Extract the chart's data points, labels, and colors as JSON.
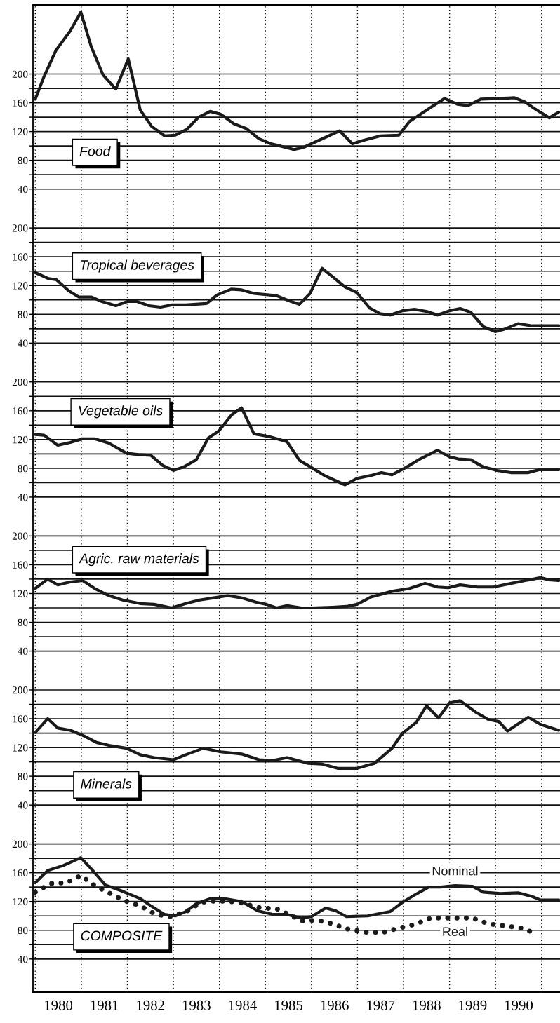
{
  "chart_data": [
    {
      "type": "line",
      "title": "Food",
      "xlim": [
        1979.95,
        1991.4
      ],
      "ylim": [
        13,
        296
      ],
      "tick_labels": "y",
      "grid": "y",
      "legend": false,
      "yticks": [
        40,
        {
          "value": 60,
          "label": null
        },
        80,
        {
          "value": 100,
          "label": null
        },
        120,
        {
          "value": 140,
          "label": null
        },
        160,
        {
          "value": 180,
          "label": null
        },
        200
      ],
      "ref_lines": [
        {
          "axis": "x",
          "value": 1980,
          "line_style": "dotted",
          "color": "#000000"
        },
        {
          "axis": "x",
          "value": 1981,
          "line_style": "dotted",
          "color": "#000000"
        },
        {
          "axis": "x",
          "value": 1982,
          "line_style": "dotted",
          "color": "#000000"
        },
        {
          "axis": "x",
          "value": 1983,
          "line_style": "dotted",
          "color": "#000000"
        },
        {
          "axis": "x",
          "value": 1984,
          "line_style": "dotted",
          "color": "#000000"
        },
        {
          "axis": "x",
          "value": 1985,
          "line_style": "dotted",
          "color": "#000000"
        },
        {
          "axis": "x",
          "value": 1986,
          "line_style": "dotted",
          "color": "#000000"
        },
        {
          "axis": "x",
          "value": 1987,
          "line_style": "dotted",
          "color": "#000000"
        },
        {
          "axis": "x",
          "value": 1988,
          "line_style": "dotted",
          "color": "#000000"
        },
        {
          "axis": "x",
          "value": 1989,
          "line_style": "dotted",
          "color": "#000000"
        },
        {
          "axis": "x",
          "value": 1990,
          "line_style": "dotted",
          "color": "#000000"
        },
        {
          "axis": "x",
          "value": 1991,
          "line_style": "dotted",
          "color": "#000000"
        }
      ],
      "series": [
        {
          "color": "#1a1a1a",
          "line_style": "solid",
          "x": [
            1980.0,
            1980.18,
            1980.45,
            1980.76,
            1980.99,
            1981.22,
            1981.47,
            1981.75,
            1982.02,
            1982.28,
            1982.53,
            1982.81,
            1983.04,
            1983.29,
            1983.55,
            1983.8,
            1984.03,
            1984.31,
            1984.59,
            1984.86,
            1985.12,
            1985.32,
            1985.62,
            1985.83,
            1986.1,
            1986.61,
            1986.89,
            1987.14,
            1987.5,
            1987.9,
            1988.13,
            1988.51,
            1988.89,
            1989.17,
            1989.4,
            1989.68,
            1990.13,
            1990.41,
            1990.64,
            1990.89,
            1991.17,
            1991.37
          ],
          "values": [
            165,
            195,
            233,
            260,
            286,
            237,
            199,
            179,
            221,
            150,
            127,
            114,
            115,
            123,
            140,
            148,
            144,
            131,
            124,
            110,
            103,
            100,
            95,
            98,
            106,
            121,
            103,
            108,
            114,
            115,
            134,
            150,
            166,
            158,
            156,
            165,
            166,
            167,
            161,
            150,
            139,
            147
          ]
        }
      ]
    },
    {
      "type": "line",
      "title": "Tropical beverages",
      "xlim": [
        1979.95,
        1991.4
      ],
      "ylim": [
        13,
        227
      ],
      "tick_labels": "y",
      "grid": "y",
      "legend": false,
      "yticks": [
        40,
        {
          "value": 60,
          "label": null
        },
        80,
        {
          "value": 100,
          "label": null
        },
        120,
        {
          "value": 140,
          "label": null
        },
        160,
        {
          "value": 180,
          "label": null
        },
        200
      ],
      "ref_lines": [
        {
          "axis": "x",
          "value": 1980,
          "line_style": "dotted",
          "color": "#000000"
        },
        {
          "axis": "x",
          "value": 1981,
          "line_style": "dotted",
          "color": "#000000"
        },
        {
          "axis": "x",
          "value": 1982,
          "line_style": "dotted",
          "color": "#000000"
        },
        {
          "axis": "x",
          "value": 1983,
          "line_style": "dotted",
          "color": "#000000"
        },
        {
          "axis": "x",
          "value": 1984,
          "line_style": "dotted",
          "color": "#000000"
        },
        {
          "axis": "x",
          "value": 1985,
          "line_style": "dotted",
          "color": "#000000"
        },
        {
          "axis": "x",
          "value": 1986,
          "line_style": "dotted",
          "color": "#000000"
        },
        {
          "axis": "x",
          "value": 1987,
          "line_style": "dotted",
          "color": "#000000"
        },
        {
          "axis": "x",
          "value": 1988,
          "line_style": "dotted",
          "color": "#000000"
        },
        {
          "axis": "x",
          "value": 1989,
          "line_style": "dotted",
          "color": "#000000"
        },
        {
          "axis": "x",
          "value": 1990,
          "line_style": "dotted",
          "color": "#000000"
        },
        {
          "axis": "x",
          "value": 1991,
          "line_style": "dotted",
          "color": "#000000"
        }
      ],
      "series": [
        {
          "color": "#1a1a1a",
          "line_style": "solid",
          "x": [
            1980.0,
            1980.27,
            1980.46,
            1980.72,
            1980.95,
            1981.22,
            1981.44,
            1981.75,
            1982.01,
            1982.2,
            1982.47,
            1982.72,
            1982.96,
            1983.27,
            1983.72,
            1983.95,
            1984.26,
            1984.48,
            1984.75,
            1985.24,
            1985.55,
            1985.74,
            1985.97,
            1986.23,
            1986.5,
            1986.73,
            1986.99,
            1987.26,
            1987.49,
            1987.71,
            1987.98,
            1988.24,
            1988.51,
            1988.74,
            1989.0,
            1989.23,
            1989.46,
            1989.73,
            1989.99,
            1990.18,
            1990.49,
            1990.79,
            1991.13,
            1991.37
          ],
          "values": [
            138,
            130,
            128,
            113,
            104,
            104,
            98,
            92,
            98,
            98,
            92,
            90,
            93,
            93,
            95,
            107,
            115,
            114,
            109,
            106,
            98,
            94,
            109,
            144,
            130,
            118,
            110,
            89,
            81,
            79,
            85,
            87,
            84,
            79,
            85,
            88,
            83,
            63,
            56,
            59,
            67,
            64,
            64,
            64
          ]
        }
      ]
    },
    {
      "type": "line",
      "title": "Vegetable oils",
      "xlim": [
        1979.95,
        1991.4
      ],
      "ylim": [
        13,
        227
      ],
      "tick_labels": "y",
      "grid": "y",
      "legend": false,
      "yticks": [
        40,
        {
          "value": 60,
          "label": null
        },
        80,
        {
          "value": 100,
          "label": null
        },
        120,
        {
          "value": 140,
          "label": null
        },
        160,
        {
          "value": 180,
          "label": null
        },
        200
      ],
      "ref_lines": [
        {
          "axis": "x",
          "value": 1980,
          "line_style": "dotted",
          "color": "#000000"
        },
        {
          "axis": "x",
          "value": 1981,
          "line_style": "dotted",
          "color": "#000000"
        },
        {
          "axis": "x",
          "value": 1982,
          "line_style": "dotted",
          "color": "#000000"
        },
        {
          "axis": "x",
          "value": 1983,
          "line_style": "dotted",
          "color": "#000000"
        },
        {
          "axis": "x",
          "value": 1984,
          "line_style": "dotted",
          "color": "#000000"
        },
        {
          "axis": "x",
          "value": 1985,
          "line_style": "dotted",
          "color": "#000000"
        },
        {
          "axis": "x",
          "value": 1986,
          "line_style": "dotted",
          "color": "#000000"
        },
        {
          "axis": "x",
          "value": 1987,
          "line_style": "dotted",
          "color": "#000000"
        },
        {
          "axis": "x",
          "value": 1988,
          "line_style": "dotted",
          "color": "#000000"
        },
        {
          "axis": "x",
          "value": 1989,
          "line_style": "dotted",
          "color": "#000000"
        },
        {
          "axis": "x",
          "value": 1990,
          "line_style": "dotted",
          "color": "#000000"
        },
        {
          "axis": "x",
          "value": 1991,
          "line_style": "dotted",
          "color": "#000000"
        }
      ],
      "series": [
        {
          "color": "#1a1a1a",
          "line_style": "solid",
          "x": [
            1980.0,
            1980.19,
            1980.49,
            1980.76,
            1981.03,
            1981.29,
            1981.6,
            1981.98,
            1982.24,
            1982.51,
            1982.77,
            1983.0,
            1983.23,
            1983.5,
            1983.76,
            1983.99,
            1984.26,
            1984.48,
            1984.75,
            1985.09,
            1985.47,
            1985.74,
            1986.0,
            1986.31,
            1986.73,
            1986.99,
            1987.29,
            1987.52,
            1987.75,
            1988.05,
            1988.36,
            1988.74,
            1989.0,
            1989.19,
            1989.46,
            1989.73,
            1990.03,
            1990.33,
            1990.71,
            1990.94,
            1991.16,
            1991.37
          ],
          "values": [
            127,
            126,
            112,
            116,
            121,
            121,
            115,
            101,
            99,
            98,
            84,
            77,
            82,
            92,
            122,
            132,
            154,
            164,
            128,
            124,
            117,
            91,
            81,
            69,
            57,
            66,
            70,
            74,
            71,
            81,
            93,
            105,
            96,
            93,
            92,
            82,
            77,
            74,
            74,
            78,
            78,
            78
          ]
        }
      ]
    },
    {
      "type": "line",
      "title": "Agric. raw materials",
      "xlim": [
        1979.95,
        1991.4
      ],
      "ylim": [
        13,
        227
      ],
      "tick_labels": "y",
      "grid": "y",
      "legend": false,
      "yticks": [
        40,
        {
          "value": 60,
          "label": null
        },
        80,
        {
          "value": 100,
          "label": null
        },
        120,
        {
          "value": 140,
          "label": null
        },
        160,
        {
          "value": 180,
          "label": null
        },
        200
      ],
      "ref_lines": [
        {
          "axis": "x",
          "value": 1980,
          "line_style": "dotted",
          "color": "#000000"
        },
        {
          "axis": "x",
          "value": 1981,
          "line_style": "dotted",
          "color": "#000000"
        },
        {
          "axis": "x",
          "value": 1982,
          "line_style": "dotted",
          "color": "#000000"
        },
        {
          "axis": "x",
          "value": 1983,
          "line_style": "dotted",
          "color": "#000000"
        },
        {
          "axis": "x",
          "value": 1984,
          "line_style": "dotted",
          "color": "#000000"
        },
        {
          "axis": "x",
          "value": 1985,
          "line_style": "dotted",
          "color": "#000000"
        },
        {
          "axis": "x",
          "value": 1986,
          "line_style": "dotted",
          "color": "#000000"
        },
        {
          "axis": "x",
          "value": 1987,
          "line_style": "dotted",
          "color": "#000000"
        },
        {
          "axis": "x",
          "value": 1988,
          "line_style": "dotted",
          "color": "#000000"
        },
        {
          "axis": "x",
          "value": 1989,
          "line_style": "dotted",
          "color": "#000000"
        },
        {
          "axis": "x",
          "value": 1990,
          "line_style": "dotted",
          "color": "#000000"
        },
        {
          "axis": "x",
          "value": 1991,
          "line_style": "dotted",
          "color": "#000000"
        }
      ],
      "series": [
        {
          "color": "#1a1a1a",
          "line_style": "solid",
          "x": [
            1980.0,
            1980.27,
            1980.49,
            1980.76,
            1981.03,
            1981.29,
            1981.6,
            1981.9,
            1982.28,
            1982.58,
            1982.96,
            1983.27,
            1983.57,
            1983.88,
            1984.18,
            1984.48,
            1984.79,
            1985.02,
            1985.24,
            1985.47,
            1985.78,
            1986.0,
            1986.46,
            1986.76,
            1986.99,
            1987.29,
            1987.75,
            1988.13,
            1988.47,
            1988.74,
            1988.97,
            1989.23,
            1989.61,
            1989.95,
            1990.33,
            1990.64,
            1990.98,
            1991.16,
            1991.37
          ],
          "values": [
            127,
            140,
            132,
            136,
            138,
            127,
            117,
            111,
            106,
            105,
            100,
            106,
            111,
            114,
            117,
            114,
            108,
            105,
            100,
            103,
            100,
            100,
            101,
            102,
            105,
            115,
            123,
            127,
            134,
            129,
            128,
            132,
            129,
            129,
            134,
            138,
            142,
            139,
            138
          ]
        }
      ]
    },
    {
      "type": "line",
      "title": "Minerals",
      "xlim": [
        1979.95,
        1991.4
      ],
      "ylim": [
        13,
        227
      ],
      "tick_labels": "y",
      "grid": "y",
      "legend": false,
      "yticks": [
        40,
        {
          "value": 60,
          "label": null
        },
        80,
        {
          "value": 100,
          "label": null
        },
        120,
        {
          "value": 140,
          "label": null
        },
        160,
        {
          "value": 180,
          "label": null
        },
        200
      ],
      "ref_lines": [
        {
          "axis": "x",
          "value": 1980,
          "line_style": "dotted",
          "color": "#000000"
        },
        {
          "axis": "x",
          "value": 1981,
          "line_style": "dotted",
          "color": "#000000"
        },
        {
          "axis": "x",
          "value": 1982,
          "line_style": "dotted",
          "color": "#000000"
        },
        {
          "axis": "x",
          "value": 1983,
          "line_style": "dotted",
          "color": "#000000"
        },
        {
          "axis": "x",
          "value": 1984,
          "line_style": "dotted",
          "color": "#000000"
        },
        {
          "axis": "x",
          "value": 1985,
          "line_style": "dotted",
          "color": "#000000"
        },
        {
          "axis": "x",
          "value": 1986,
          "line_style": "dotted",
          "color": "#000000"
        },
        {
          "axis": "x",
          "value": 1987,
          "line_style": "dotted",
          "color": "#000000"
        },
        {
          "axis": "x",
          "value": 1988,
          "line_style": "dotted",
          "color": "#000000"
        },
        {
          "axis": "x",
          "value": 1989,
          "line_style": "dotted",
          "color": "#000000"
        },
        {
          "axis": "x",
          "value": 1990,
          "line_style": "dotted",
          "color": "#000000"
        },
        {
          "axis": "x",
          "value": 1991,
          "line_style": "dotted",
          "color": "#000000"
        }
      ],
      "series": [
        {
          "color": "#1a1a1a",
          "line_style": "solid",
          "x": [
            1980.0,
            1980.27,
            1980.49,
            1980.76,
            1981.03,
            1981.33,
            1981.6,
            1981.98,
            1982.28,
            1982.58,
            1983.0,
            1983.27,
            1983.65,
            1984.03,
            1984.48,
            1984.86,
            1985.17,
            1985.47,
            1985.93,
            1986.23,
            1986.57,
            1986.99,
            1987.37,
            1987.75,
            1987.98,
            1988.28,
            1988.5,
            1988.76,
            1989.0,
            1989.23,
            1989.57,
            1989.84,
            1990.07,
            1990.26,
            1990.71,
            1990.98,
            1991.37
          ],
          "values": [
            141,
            160,
            147,
            144,
            137,
            127,
            123,
            119,
            110,
            106,
            103,
            110,
            119,
            114,
            111,
            103,
            102,
            106,
            98,
            97,
            91,
            91,
            98,
            119,
            140,
            155,
            178,
            161,
            182,
            185,
            169,
            159,
            156,
            143,
            162,
            152,
            144
          ]
        }
      ]
    },
    {
      "type": "line",
      "title": "COMPOSITE",
      "xlim": [
        1979.95,
        1991.4
      ],
      "ylim": [
        -6,
        227
      ],
      "grid": "y",
      "legend": false,
      "xticks": [
        {
          "value": 1980.5,
          "label": "1980"
        },
        {
          "value": 1981.5,
          "label": "1981"
        },
        {
          "value": 1982.5,
          "label": "1982"
        },
        {
          "value": 1983.5,
          "label": "1983"
        },
        {
          "value": 1984.5,
          "label": "1984"
        },
        {
          "value": 1985.5,
          "label": "1985"
        },
        {
          "value": 1986.5,
          "label": "1986"
        },
        {
          "value": 1987.5,
          "label": "1987"
        },
        {
          "value": 1988.5,
          "label": "1988"
        },
        {
          "value": 1989.5,
          "label": "1989"
        },
        {
          "value": 1990.5,
          "label": "1990"
        }
      ],
      "yticks": [
        40,
        {
          "value": 60,
          "label": null
        },
        80,
        {
          "value": 100,
          "label": null
        },
        120,
        {
          "value": 140,
          "label": null
        },
        160,
        {
          "value": 180,
          "label": null
        },
        200
      ],
      "ref_lines": [
        {
          "axis": "x",
          "value": 1980,
          "line_style": "dotted",
          "color": "#000000"
        },
        {
          "axis": "x",
          "value": 1981,
          "line_style": "dotted",
          "color": "#000000"
        },
        {
          "axis": "x",
          "value": 1982,
          "line_style": "dotted",
          "color": "#000000"
        },
        {
          "axis": "x",
          "value": 1983,
          "line_style": "dotted",
          "color": "#000000"
        },
        {
          "axis": "x",
          "value": 1984,
          "line_style": "dotted",
          "color": "#000000"
        },
        {
          "axis": "x",
          "value": 1985,
          "line_style": "dotted",
          "color": "#000000"
        },
        {
          "axis": "x",
          "value": 1986,
          "line_style": "dotted",
          "color": "#000000"
        },
        {
          "axis": "x",
          "value": 1987,
          "line_style": "dotted",
          "color": "#000000"
        },
        {
          "axis": "x",
          "value": 1988,
          "line_style": "dotted",
          "color": "#000000"
        },
        {
          "axis": "x",
          "value": 1989,
          "line_style": "dotted",
          "color": "#000000"
        },
        {
          "axis": "x",
          "value": 1990,
          "line_style": "dotted",
          "color": "#000000"
        },
        {
          "axis": "x",
          "value": 1991,
          "line_style": "dotted",
          "color": "#000000"
        }
      ],
      "series": [
        {
          "name": "Nominal",
          "color": "#1a1a1a",
          "line_style": "solid",
          "x": [
            1980.0,
            1980.27,
            1980.61,
            1980.99,
            1981.25,
            1981.52,
            1981.86,
            1982.28,
            1982.51,
            1982.81,
            1983.04,
            1983.27,
            1983.5,
            1983.8,
            1984.1,
            1984.48,
            1984.83,
            1985.17,
            1985.47,
            1985.78,
            1986.0,
            1986.31,
            1986.53,
            1986.76,
            1987.22,
            1987.71,
            1987.98,
            1988.24,
            1988.55,
            1988.81,
            1989.12,
            1989.5,
            1989.73,
            1990.11,
            1990.49,
            1990.79,
            1990.98,
            1991.37
          ],
          "values": [
            146,
            163,
            170,
            181,
            163,
            143,
            135,
            124,
            114,
            102,
            100,
            106,
            117,
            124,
            124,
            120,
            107,
            102,
            102,
            97,
            99,
            111,
            107,
            99,
            100,
            106,
            119,
            129,
            140,
            140,
            142,
            141,
            133,
            131,
            132,
            127,
            122,
            122
          ]
        },
        {
          "name": "Real",
          "color": "#1a1a1a",
          "line_style": "dotted",
          "x": [
            1980.0,
            1980.34,
            1980.68,
            1980.99,
            1981.29,
            1981.6,
            1981.94,
            1982.28,
            1982.62,
            1982.96,
            1983.31,
            1983.61,
            1983.95,
            1984.41,
            1984.9,
            1985.24,
            1985.55,
            1985.78,
            1986.12,
            1986.46,
            1986.76,
            1987.22,
            1987.56,
            1987.9,
            1988.24,
            1988.59,
            1989.12,
            1989.5,
            1989.84,
            1990.22,
            1990.56,
            1990.9
          ],
          "values": [
            133,
            145,
            146,
            156,
            142,
            132,
            121,
            114,
            102,
            99,
            107,
            119,
            121,
            119,
            111,
            110,
            101,
            93,
            94,
            89,
            82,
            77,
            77,
            83,
            88,
            97,
            97,
            97,
            89,
            86,
            83,
            75
          ]
        }
      ]
    }
  ]
}
